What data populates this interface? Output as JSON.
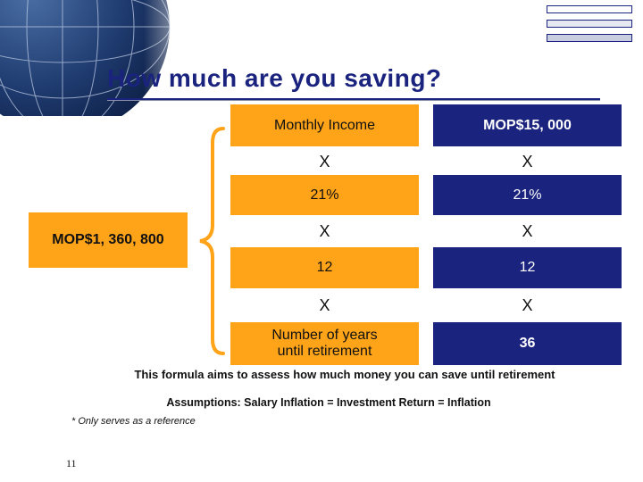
{
  "title": "How much are you saving?",
  "result": "MOP$1, 360, 800",
  "left_column": {
    "label": "Monthly Income",
    "op1": "X",
    "rate": "21%",
    "op2": "X",
    "months": "12",
    "op3": "X",
    "years_label": "Number of years until retirement"
  },
  "right_column": {
    "income": "MOP$15, 000",
    "op1": "X",
    "rate": "21%",
    "op2": "X",
    "months": "12",
    "op3": "X",
    "years": "36"
  },
  "formula_note": "This formula aims to assess how much money you can save until retirement",
  "assumptions": "Assumptions: Salary Inflation = Investment Return = Inflation",
  "reference": "* Only serves as a reference",
  "page_number": "11",
  "colors": {
    "navy": "#1a237e",
    "orange": "#ffa319"
  }
}
